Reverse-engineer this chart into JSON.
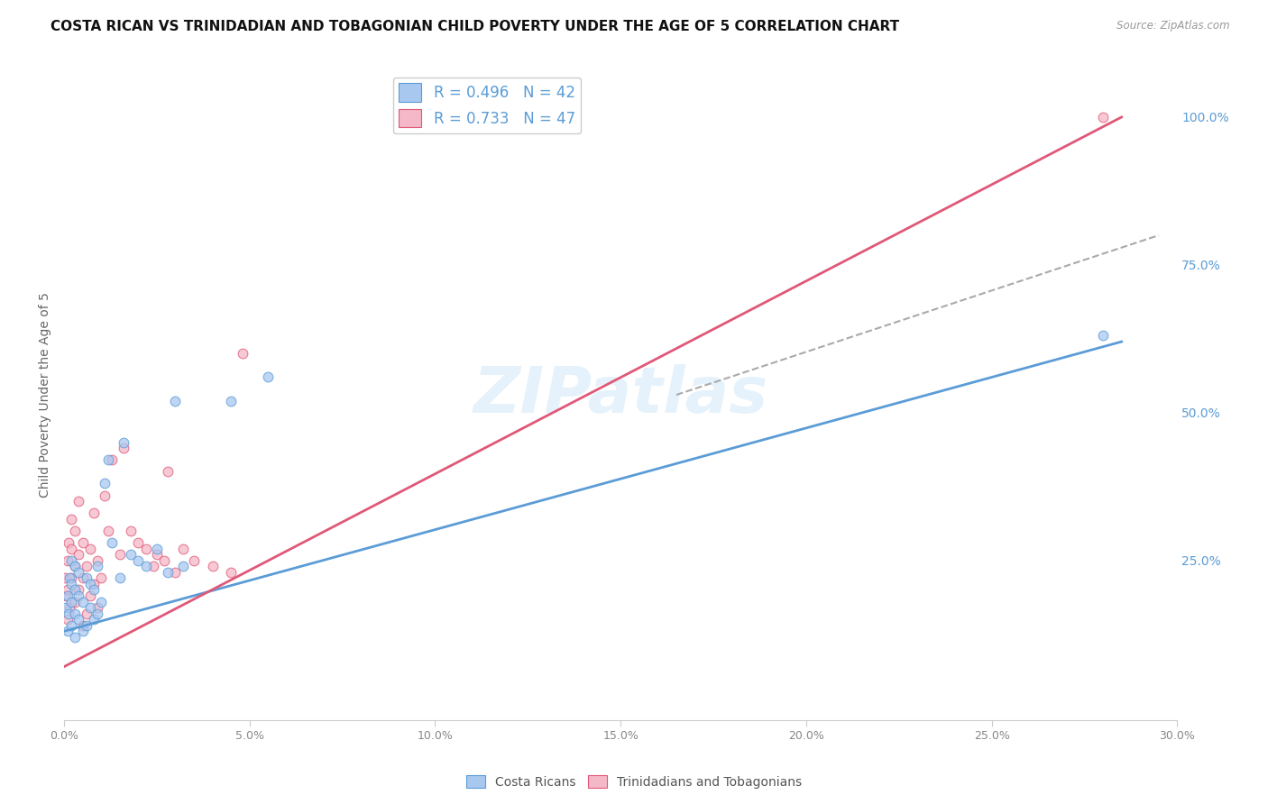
{
  "title": "COSTA RICAN VS TRINIDADIAN AND TOBAGONIAN CHILD POVERTY UNDER THE AGE OF 5 CORRELATION CHART",
  "source": "Source: ZipAtlas.com",
  "ylabel": "Child Poverty Under the Age of 5",
  "xlim": [
    0.0,
    0.3
  ],
  "ylim": [
    -0.02,
    1.08
  ],
  "xticks": [
    0.0,
    0.05,
    0.1,
    0.15,
    0.2,
    0.25,
    0.3
  ],
  "xtick_labels": [
    "0.0%",
    "5.0%",
    "10.0%",
    "15.0%",
    "20.0%",
    "25.0%",
    "30.0%"
  ],
  "yticks_right": [
    0.25,
    0.5,
    0.75,
    1.0
  ],
  "ytick_right_labels": [
    "25.0%",
    "50.0%",
    "75.0%",
    "100.0%"
  ],
  "blue_color": "#a8c8f0",
  "pink_color": "#f5b8c8",
  "blue_edge": "#5b9cd6",
  "pink_edge": "#e05878",
  "blue_R": 0.496,
  "blue_N": 42,
  "pink_R": 0.733,
  "pink_N": 47,
  "watermark": "ZIPatlas",
  "blue_scatter_x": [
    0.0005,
    0.001,
    0.001,
    0.0012,
    0.0015,
    0.002,
    0.002,
    0.002,
    0.002,
    0.003,
    0.003,
    0.003,
    0.003,
    0.004,
    0.004,
    0.004,
    0.005,
    0.005,
    0.006,
    0.006,
    0.007,
    0.007,
    0.008,
    0.008,
    0.009,
    0.009,
    0.01,
    0.011,
    0.012,
    0.013,
    0.015,
    0.016,
    0.018,
    0.02,
    0.022,
    0.025,
    0.028,
    0.03,
    0.032,
    0.045,
    0.055,
    0.28
  ],
  "blue_scatter_y": [
    0.17,
    0.13,
    0.19,
    0.16,
    0.22,
    0.14,
    0.18,
    0.21,
    0.25,
    0.12,
    0.16,
    0.2,
    0.24,
    0.15,
    0.19,
    0.23,
    0.13,
    0.18,
    0.14,
    0.22,
    0.17,
    0.21,
    0.15,
    0.2,
    0.16,
    0.24,
    0.18,
    0.38,
    0.42,
    0.28,
    0.22,
    0.45,
    0.26,
    0.25,
    0.24,
    0.27,
    0.23,
    0.52,
    0.24,
    0.52,
    0.56,
    0.63
  ],
  "pink_scatter_x": [
    0.0003,
    0.0005,
    0.001,
    0.001,
    0.001,
    0.0012,
    0.0015,
    0.002,
    0.002,
    0.002,
    0.003,
    0.003,
    0.003,
    0.004,
    0.004,
    0.004,
    0.005,
    0.005,
    0.005,
    0.006,
    0.006,
    0.007,
    0.007,
    0.008,
    0.008,
    0.009,
    0.009,
    0.01,
    0.011,
    0.012,
    0.013,
    0.015,
    0.016,
    0.018,
    0.02,
    0.022,
    0.024,
    0.025,
    0.027,
    0.028,
    0.03,
    0.032,
    0.035,
    0.04,
    0.045,
    0.048,
    0.28
  ],
  "pink_scatter_y": [
    0.22,
    0.19,
    0.15,
    0.2,
    0.25,
    0.28,
    0.17,
    0.22,
    0.27,
    0.32,
    0.18,
    0.24,
    0.3,
    0.2,
    0.26,
    0.35,
    0.14,
    0.22,
    0.28,
    0.16,
    0.24,
    0.19,
    0.27,
    0.21,
    0.33,
    0.17,
    0.25,
    0.22,
    0.36,
    0.3,
    0.42,
    0.26,
    0.44,
    0.3,
    0.28,
    0.27,
    0.24,
    0.26,
    0.25,
    0.4,
    0.23,
    0.27,
    0.25,
    0.24,
    0.23,
    0.6,
    1.0
  ],
  "blue_line_x": [
    0.0,
    0.285
  ],
  "blue_line_y": [
    0.13,
    0.62
  ],
  "pink_line_x": [
    0.0,
    0.285
  ],
  "pink_line_y": [
    0.07,
    1.0
  ],
  "dash_line_x": [
    0.165,
    0.295
  ],
  "dash_line_y": [
    0.53,
    0.8
  ],
  "background_color": "#ffffff",
  "grid_color": "#cccccc",
  "title_fontsize": 11,
  "axis_label_fontsize": 10,
  "tick_fontsize": 9,
  "legend_fontsize": 12,
  "right_tick_color": "#5b9cd6",
  "marker_size": 60
}
